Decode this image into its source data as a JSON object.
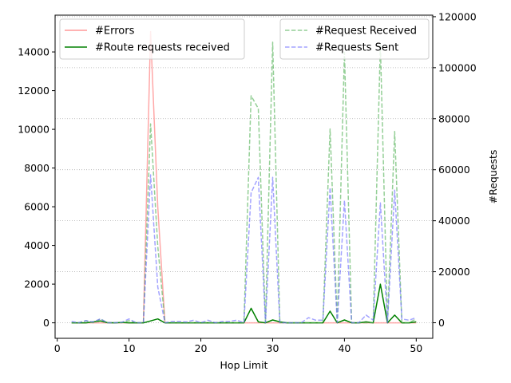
{
  "chart_data": {
    "type": "line",
    "title": "",
    "xlabel": "Hop Limit",
    "ylabel": "",
    "y2label": "#Requests",
    "xlim": [
      -0.3,
      52.3
    ],
    "ylim": [
      -800,
      15900
    ],
    "y2lim": [
      -6100,
      120600
    ],
    "xticks": [
      0,
      10,
      20,
      30,
      40,
      50
    ],
    "yticks": [
      0,
      2000,
      4000,
      6000,
      8000,
      10000,
      12000,
      14000
    ],
    "y2ticks": [
      0,
      20000,
      40000,
      60000,
      80000,
      100000,
      120000
    ],
    "grid": "horizontal dotted lines on right axis ticks",
    "legend_left_position": "upper-left",
    "legend_right_position": "upper-right",
    "x": [
      2,
      3,
      4,
      5,
      6,
      7,
      8,
      9,
      10,
      11,
      12,
      13,
      14,
      15,
      16,
      17,
      18,
      19,
      20,
      21,
      22,
      23,
      24,
      25,
      26,
      27,
      28,
      29,
      30,
      31,
      32,
      33,
      34,
      35,
      36,
      37,
      38,
      39,
      40,
      41,
      42,
      43,
      44,
      45,
      46,
      47,
      48,
      49,
      50
    ],
    "series": [
      {
        "name": "#Errors",
        "axis": "left",
        "color": "#ff9999",
        "style": "solid",
        "values": [
          0,
          0,
          0,
          0,
          0,
          0,
          0,
          0,
          0,
          0,
          0,
          15050,
          6000,
          0,
          0,
          0,
          0,
          0,
          0,
          0,
          0,
          0,
          0,
          0,
          0,
          0,
          0,
          0,
          0,
          0,
          0,
          0,
          0,
          0,
          0,
          0,
          0,
          0,
          0,
          0,
          0,
          0,
          0,
          0,
          0,
          0,
          0,
          0,
          0
        ]
      },
      {
        "name": "#Route requests received",
        "axis": "left",
        "color": "#008000",
        "style": "solid",
        "values": [
          0,
          0,
          0,
          50,
          100,
          10,
          0,
          20,
          0,
          0,
          0,
          100,
          200,
          0,
          0,
          0,
          0,
          0,
          0,
          0,
          0,
          0,
          0,
          0,
          0,
          750,
          50,
          0,
          150,
          50,
          0,
          0,
          0,
          0,
          0,
          0,
          600,
          0,
          150,
          0,
          0,
          50,
          0,
          2000,
          0,
          400,
          0,
          0,
          50
        ]
      },
      {
        "name": "#Request Received",
        "axis": "right",
        "color": "#4caf50",
        "style": "dashed",
        "values": [
          0,
          0,
          800,
          0,
          1500,
          0,
          0,
          0,
          800,
          0,
          0,
          78000,
          30000,
          0,
          0,
          0,
          0,
          0,
          0,
          0,
          0,
          0,
          0,
          0,
          0,
          89000,
          84000,
          0,
          110000,
          0,
          0,
          0,
          0,
          0,
          0,
          0,
          76000,
          0,
          106000,
          0,
          0,
          0,
          0,
          109000,
          0,
          75000,
          0,
          0,
          1500
        ]
      },
      {
        "name": "#Requests Sent",
        "axis": "right",
        "color": "#6666ff",
        "style": "dashed",
        "values": [
          500,
          0,
          800,
          300,
          1500,
          0,
          0,
          200,
          1500,
          0,
          0,
          58000,
          14000,
          0,
          500,
          500,
          300,
          1000,
          0,
          1000,
          0,
          500,
          500,
          1000,
          0,
          51000,
          57000,
          0,
          57000,
          0,
          0,
          0,
          0,
          2000,
          1000,
          1000,
          53000,
          0,
          48000,
          0,
          0,
          3000,
          1000,
          47000,
          0,
          52000,
          1500,
          1000,
          2000
        ]
      }
    ]
  }
}
